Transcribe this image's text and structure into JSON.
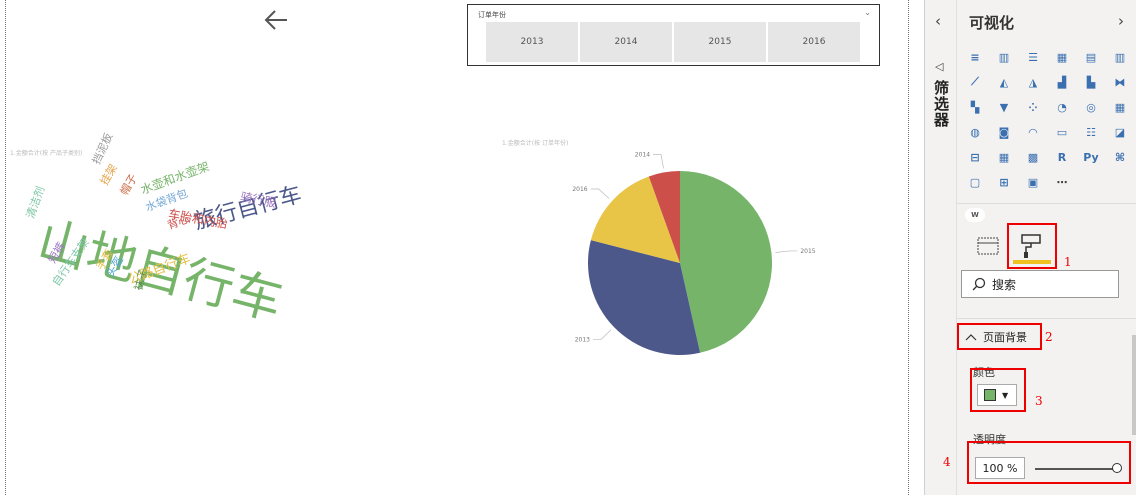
{
  "slicer": {
    "title": "订单年份",
    "years": [
      "2013",
      "2014",
      "2015",
      "2016"
    ]
  },
  "wordcloud": {
    "title": "1.金额合计(按 产品子类别)",
    "words": [
      {
        "text": "山地自行车",
        "color": "#76b46a"
      },
      {
        "text": "旅行自行车",
        "color": "#4b5889"
      },
      {
        "text": "公路自行车",
        "color": "#e4c14a"
      },
      {
        "text": "水壶和水壶架",
        "color": "#76b46a"
      },
      {
        "text": "车胎和内胎",
        "color": "#cc4f4a"
      },
      {
        "text": "骑行服",
        "color": "#9a76bf"
      },
      {
        "text": "水袋背包",
        "color": "#74a7d5"
      },
      {
        "text": "挡泥板",
        "color": "#9a9a9a"
      },
      {
        "text": "挂架",
        "color": "#e4a44a"
      },
      {
        "text": "帽子",
        "color": "#cc6f4a"
      },
      {
        "text": "背心",
        "color": "#cc4f4a"
      },
      {
        "text": "清洁剂",
        "color": "#7fc6a8"
      },
      {
        "text": "短裤",
        "color": "#9a76bf"
      },
      {
        "text": "手套",
        "color": "#e4c14a"
      },
      {
        "text": "头盔",
        "color": "#4fa6cf"
      },
      {
        "text": "自行车支架",
        "color": "#7fc6a8"
      },
      {
        "text": "袜子",
        "color": "#5b8f4c"
      }
    ]
  },
  "pie": {
    "title": "1.金额合计(按 订单年份)",
    "chart_data": {
      "type": "pie",
      "labels": [
        "2015",
        "2013",
        "2016",
        "2014"
      ],
      "values": [
        46.5,
        32.5,
        15.5,
        5.5
      ],
      "colors": [
        "#76b46a",
        "#4b5889",
        "#e8c547",
        "#cc4f4a"
      ]
    }
  },
  "filters_pane": {
    "label": "筛选器"
  },
  "viz_pane": {
    "title": "可视化",
    "badge": "W",
    "icons": [
      "stacked-bar-icon",
      "stacked-column-icon",
      "clustered-bar-icon",
      "clustered-column-icon",
      "100-bar-icon",
      "100-column-icon",
      "line-chart-icon",
      "area-chart-icon",
      "stacked-area-icon",
      "line-column-icon",
      "line-clustered-column-icon",
      "ribbon-chart-icon",
      "waterfall-icon",
      "funnel-icon",
      "scatter-icon",
      "pie-icon",
      "donut-icon",
      "treemap-icon",
      "map-icon",
      "filled-map-icon",
      "gauge-icon",
      "card-icon",
      "multi-row-card-icon",
      "kpi-icon",
      "slicer-icon",
      "table-icon",
      "matrix-icon",
      "r-visual-icon",
      "python-visual-icon",
      "decomposition-tree-icon",
      "qa-icon",
      "key-influencers-icon",
      "wordcloud-icon",
      "more-icon"
    ],
    "search_placeholder": "搜索",
    "section_title": "页面背景",
    "color_label": "颜色",
    "color_value": "#76b46a",
    "transparency_label": "透明度",
    "transparency_value": "100",
    "transparency_unit": "%",
    "annotations": [
      "1",
      "2",
      "3",
      "4"
    ]
  }
}
